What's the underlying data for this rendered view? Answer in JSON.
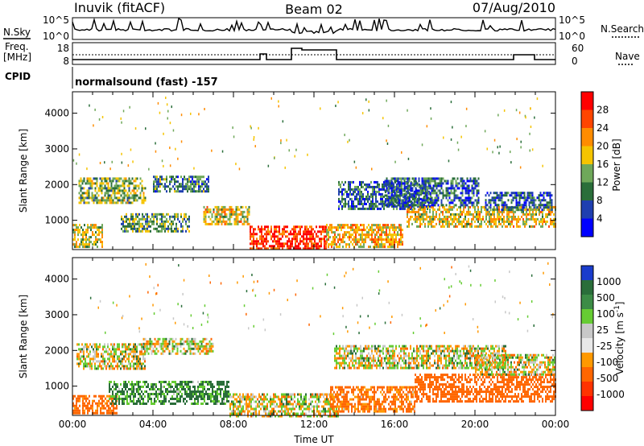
{
  "header": {
    "station": "Inuvik (fitACF)",
    "beam": "Beam 02",
    "date": "07/Aug/2010"
  },
  "summary_panel": {
    "nsky_label": "N.Sky",
    "nsky_ticks": [
      "10^5",
      "10^0"
    ],
    "nsearch_label": "N.Search",
    "nsearch_ticks": [
      "10^5",
      "10^0"
    ],
    "freq_label": "Freq.",
    "freq_unit": "[MHz]",
    "freq_ticks": [
      "18",
      "8"
    ],
    "nave_label": "Nave",
    "nave_ticks": [
      "60",
      "0"
    ],
    "cpid_label": "CPID",
    "cpid_text": "normalsound (fast) -157"
  },
  "colors": {
    "power_scale": [
      "#0000ff",
      "#1f3fb0",
      "#2a6e3a",
      "#6fa85a",
      "#f5c400",
      "#ff8c00",
      "#ff4500",
      "#ff0000"
    ],
    "velocity_scale": [
      "#1a3ccc",
      "#2a6e3a",
      "#3c8c46",
      "#66cc33",
      "#c8c8c8",
      "#e8e8e8",
      "#ff9900",
      "#ff6600",
      "#ff3300",
      "#ff0000"
    ]
  },
  "chart_data": [
    {
      "type": "heatmap",
      "name": "power",
      "xlabel": "",
      "ylabel": "Slant Range [km]",
      "xlim": [
        0,
        24
      ],
      "ylim": [
        180,
        4600
      ],
      "yticks": [
        "1000",
        "2000",
        "3000",
        "4000"
      ],
      "colorbar_label": "Power [dB]",
      "colorbar_ticks": [
        "4",
        "8",
        "12",
        "16",
        "20",
        "24",
        "28"
      ],
      "regions": [
        {
          "t0": 0.0,
          "t1": 1.5,
          "r0": 250,
          "r1": 900,
          "level": 16
        },
        {
          "t0": 0.3,
          "t1": 3.6,
          "r0": 1500,
          "r1": 2200,
          "level": 14
        },
        {
          "t0": 2.4,
          "t1": 5.8,
          "r0": 700,
          "r1": 1200,
          "level": 12
        },
        {
          "t0": 4.0,
          "t1": 6.8,
          "r0": 1800,
          "r1": 2250,
          "level": 10
        },
        {
          "t0": 6.5,
          "t1": 8.8,
          "r0": 900,
          "r1": 1400,
          "level": 18
        },
        {
          "t0": 8.8,
          "t1": 12.6,
          "r0": 180,
          "r1": 850,
          "level": 28
        },
        {
          "t0": 12.6,
          "t1": 16.4,
          "r0": 250,
          "r1": 900,
          "level": 20
        },
        {
          "t0": 13.2,
          "t1": 17.8,
          "r0": 1300,
          "r1": 2100,
          "level": 8
        },
        {
          "t0": 16.6,
          "t1": 24.0,
          "r0": 800,
          "r1": 1400,
          "level": 18
        },
        {
          "t0": 15.5,
          "t1": 20.2,
          "r0": 1400,
          "r1": 2200,
          "level": 8
        },
        {
          "t0": 20.5,
          "t1": 23.8,
          "r0": 1300,
          "r1": 1800,
          "level": 8
        }
      ]
    },
    {
      "type": "heatmap",
      "name": "velocity",
      "xlabel": "Time UT",
      "ylabel": "Slant Range [km]",
      "xlim": [
        0,
        24
      ],
      "ylim": [
        180,
        4600
      ],
      "xticks": [
        "00:00",
        "04:00",
        "08:00",
        "12:00",
        "16:00",
        "20:00",
        "00:00"
      ],
      "yticks": [
        "1000",
        "2000",
        "3000",
        "4000"
      ],
      "colorbar_label": "Velocity [m s^-1]",
      "colorbar_ticks": [
        "1000",
        "500",
        "100",
        "25",
        "-25",
        "-100",
        "-500",
        "-1000"
      ],
      "regions": [
        {
          "t0": 0.2,
          "t1": 3.6,
          "r0": 1500,
          "r1": 2200,
          "level": 0
        },
        {
          "t0": 3.5,
          "t1": 7.0,
          "r0": 1900,
          "r1": 2350,
          "level": 0
        },
        {
          "t0": 0.0,
          "t1": 2.2,
          "r0": 250,
          "r1": 750,
          "level": -200
        },
        {
          "t0": 1.8,
          "t1": 7.8,
          "r0": 500,
          "r1": 1150,
          "level": 150
        },
        {
          "t0": 7.8,
          "t1": 13.2,
          "r0": 180,
          "r1": 800,
          "level": 0
        },
        {
          "t0": 12.8,
          "t1": 17.0,
          "r0": 300,
          "r1": 1000,
          "level": -150
        },
        {
          "t0": 13.0,
          "t1": 21.5,
          "r0": 1500,
          "r1": 2150,
          "level": 0
        },
        {
          "t0": 17.0,
          "t1": 24.0,
          "r0": 600,
          "r1": 1350,
          "level": -300
        },
        {
          "t0": 20.0,
          "t1": 24.0,
          "r0": 1300,
          "r1": 1900,
          "level": 0
        }
      ]
    }
  ]
}
